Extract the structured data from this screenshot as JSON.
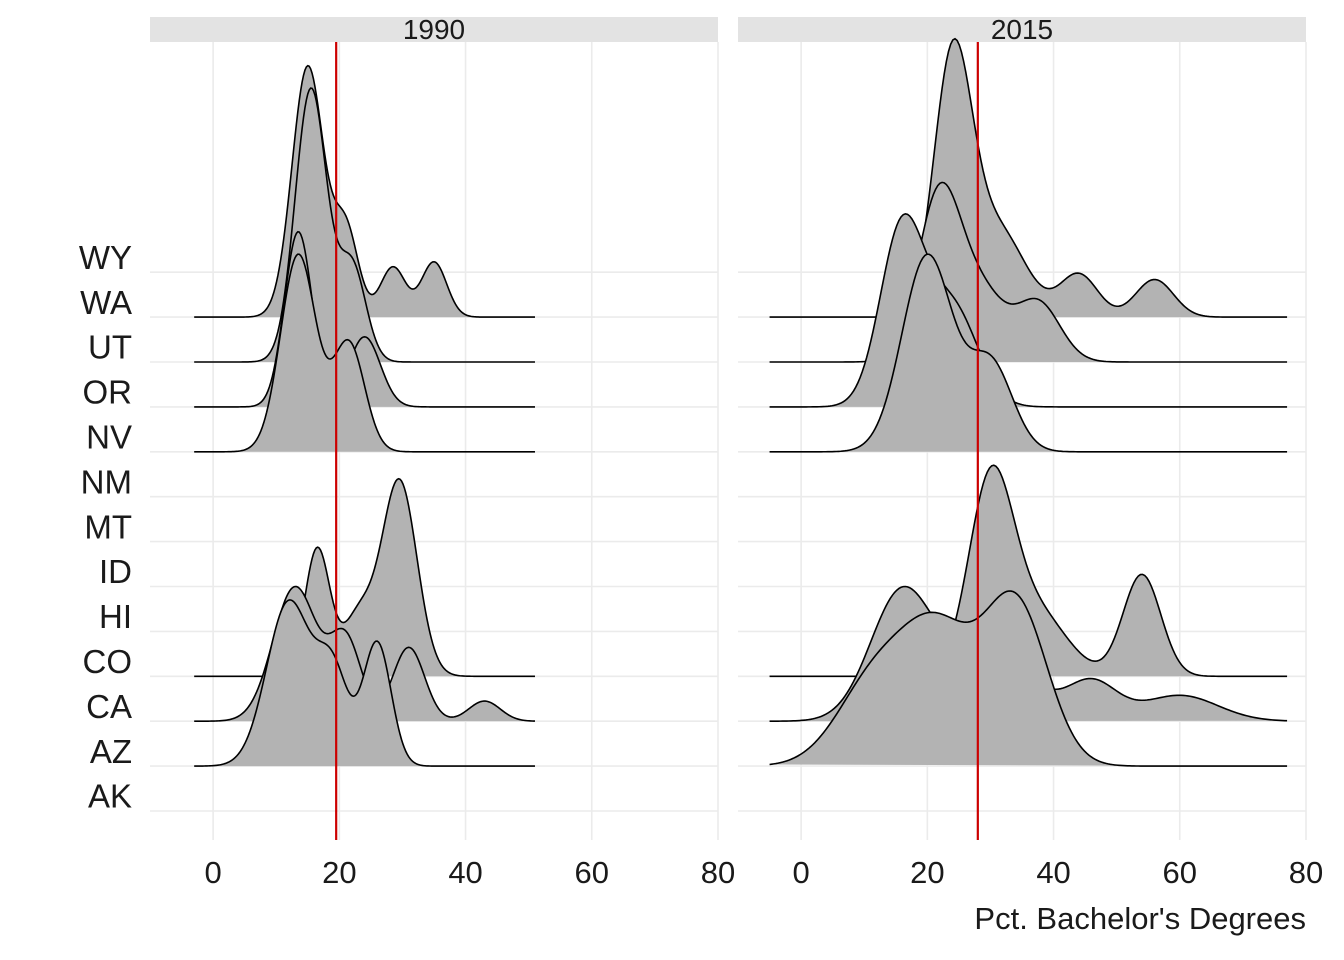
{
  "chart_data": {
    "type": "ridgeline",
    "title": "",
    "xlabel": "Pct. Bachelor's Degrees",
    "ylabel": "",
    "xlim": [
      -10,
      80
    ],
    "x_ticks": [
      0,
      20,
      40,
      60,
      80
    ],
    "states": [
      "AK",
      "AZ",
      "CA",
      "CO",
      "HI",
      "ID",
      "MT",
      "NM",
      "NV",
      "OR",
      "UT",
      "WA",
      "WY"
    ],
    "fill_color": "#b3b3b3",
    "line_color": "#cc0000",
    "grid": true,
    "legend": "none",
    "panels": [
      {
        "label": "1990",
        "reference_line_x": 19.5,
        "x_range": [
          -3,
          51
        ],
        "ridges": [
          {
            "state": "AZ",
            "height": 3.7,
            "peaks": [
              {
                "mean": 12,
                "sd": 3.5,
                "w": 1.0
              },
              {
                "mean": 19,
                "sd": 2.5,
                "w": 0.55
              },
              {
                "mean": 26,
                "sd": 2.2,
                "w": 0.75
              }
            ]
          },
          {
            "state": "CA",
            "height": 3.0,
            "peaks": [
              {
                "mean": 13,
                "sd": 3.5,
                "w": 1.0
              },
              {
                "mean": 21,
                "sd": 2.5,
                "w": 0.6
              },
              {
                "mean": 31,
                "sd": 2.5,
                "w": 0.55
              },
              {
                "mean": 43,
                "sd": 2.5,
                "w": 0.15
              }
            ]
          },
          {
            "state": "CO",
            "height": 4.4,
            "peaks": [
              {
                "mean": 16.5,
                "sd": 2.0,
                "w": 0.65
              },
              {
                "mean": 23,
                "sd": 2.5,
                "w": 0.3
              },
              {
                "mean": 29.5,
                "sd": 2.8,
                "w": 1.0
              }
            ]
          },
          {
            "state": "NV",
            "height": 4.4,
            "peaks": [
              {
                "mean": 13.5,
                "sd": 2.8,
                "w": 1.0
              },
              {
                "mean": 21.5,
                "sd": 2.5,
                "w": 0.55
              }
            ]
          },
          {
            "state": "OR",
            "height": 3.9,
            "peaks": [
              {
                "mean": 13.5,
                "sd": 2.2,
                "w": 1.0
              },
              {
                "mean": 24,
                "sd": 2.5,
                "w": 0.4
              }
            ]
          },
          {
            "state": "UT",
            "height": 6.1,
            "peaks": [
              {
                "mean": 15.5,
                "sd": 2.5,
                "w": 1.0
              },
              {
                "mean": 22,
                "sd": 2.2,
                "w": 0.35
              }
            ]
          },
          {
            "state": "WA",
            "height": 5.6,
            "peaks": [
              {
                "mean": 15,
                "sd": 2.5,
                "w": 1.0
              },
              {
                "mean": 21,
                "sd": 2.0,
                "w": 0.35
              },
              {
                "mean": 28.5,
                "sd": 2.0,
                "w": 0.2
              },
              {
                "mean": 35,
                "sd": 2.0,
                "w": 0.22
              }
            ]
          }
        ]
      },
      {
        "label": "2015",
        "reference_line_x": 28,
        "x_range": [
          -5,
          77
        ],
        "ridges": [
          {
            "state": "AZ",
            "height": 3.9,
            "peaks": [
              {
                "mean": 12,
                "sd": 6.0,
                "w": 0.55
              },
              {
                "mean": 22,
                "sd": 5.5,
                "w": 0.75
              },
              {
                "mean": 34,
                "sd": 5.0,
                "w": 1.0
              }
            ]
          },
          {
            "state": "CA",
            "height": 3.0,
            "peaks": [
              {
                "mean": 16,
                "sd": 5.0,
                "w": 1.0
              },
              {
                "mean": 30,
                "sd": 6.0,
                "w": 0.6
              },
              {
                "mean": 46,
                "sd": 4.0,
                "w": 0.3
              },
              {
                "mean": 60,
                "sd": 6.0,
                "w": 0.2
              }
            ]
          },
          {
            "state": "CO",
            "height": 4.7,
            "peaks": [
              {
                "mean": 30,
                "sd": 3.5,
                "w": 1.0
              },
              {
                "mean": 37,
                "sd": 5.0,
                "w": 0.35
              },
              {
                "mean": 54,
                "sd": 3.0,
                "w": 0.55
              }
            ]
          },
          {
            "state": "NV",
            "height": 4.4,
            "peaks": [
              {
                "mean": 20,
                "sd": 4.0,
                "w": 1.0
              },
              {
                "mean": 30,
                "sd": 3.5,
                "w": 0.45
              }
            ]
          },
          {
            "state": "OR",
            "height": 4.3,
            "peaks": [
              {
                "mean": 16,
                "sd": 3.5,
                "w": 1.0
              },
              {
                "mean": 24,
                "sd": 4.0,
                "w": 0.55
              }
            ]
          },
          {
            "state": "UT",
            "height": 4.0,
            "peaks": [
              {
                "mean": 22,
                "sd": 3.5,
                "w": 1.0
              },
              {
                "mean": 29,
                "sd": 3.5,
                "w": 0.35
              },
              {
                "mean": 37.5,
                "sd": 3.5,
                "w": 0.35
              }
            ]
          },
          {
            "state": "WA",
            "height": 6.2,
            "peaks": [
              {
                "mean": 24,
                "sd": 3.0,
                "w": 1.0
              },
              {
                "mean": 31,
                "sd": 4.5,
                "w": 0.35
              },
              {
                "mean": 44,
                "sd": 3.0,
                "w": 0.17
              },
              {
                "mean": 56,
                "sd": 3.0,
                "w": 0.15
              }
            ]
          }
        ]
      }
    ]
  }
}
